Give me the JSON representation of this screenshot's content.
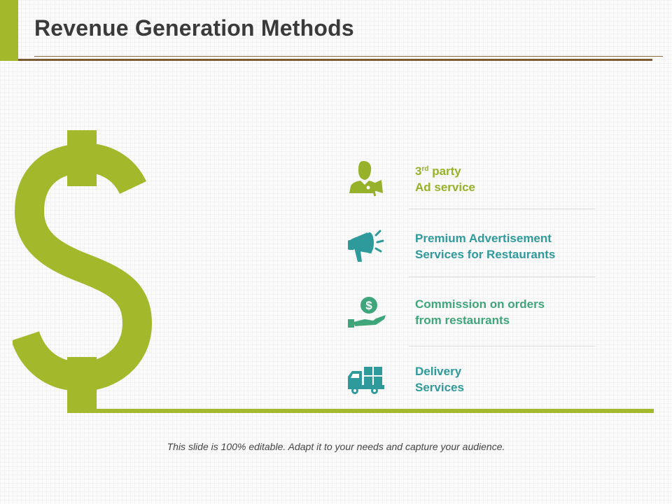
{
  "slide": {
    "title": "Revenue Generation Methods",
    "footer": "This slide is 100% editable. Adapt it to your needs and capture your audience."
  },
  "colors": {
    "green": "#a4b82c",
    "teal": "#2e9a9b",
    "mid_green": "#3fa57a",
    "brown_rule": "#7a5b33"
  },
  "decor": {
    "large_symbol": "dollar-sign-icon"
  },
  "items": [
    {
      "icon": "person-megaphone-icon",
      "line1_main": "3",
      "line1_sup": "rd",
      "line1_rest": " party",
      "line2": "Ad service",
      "color": "#95b22a"
    },
    {
      "icon": "megaphone-icon",
      "line1_main": "Premium Advertisement",
      "line2": "Services for Restaurants",
      "color": "#2e9a9b"
    },
    {
      "icon": "hand-coin-icon",
      "line1_main": "Commission on orders",
      "line2": "from restaurants",
      "color": "#3fa57a"
    },
    {
      "icon": "delivery-truck-icon",
      "line1_main": "Delivery",
      "line2": "Services",
      "color": "#2e9a9b"
    }
  ]
}
